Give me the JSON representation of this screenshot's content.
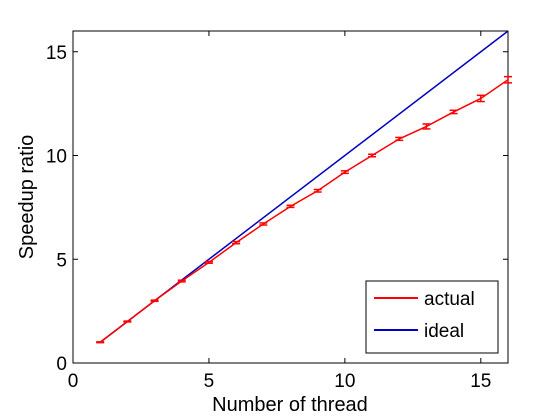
{
  "chart_data": {
    "type": "line",
    "xlabel": "Number of thread",
    "ylabel": "Speedup ratio",
    "xlim": [
      0,
      16
    ],
    "ylim": [
      0,
      16
    ],
    "xticks": [
      0,
      5,
      10,
      15
    ],
    "yticks": [
      0,
      5,
      10,
      15
    ],
    "grid": false,
    "legend_position": "bottom-right",
    "series": [
      {
        "name": "actual",
        "color": "#ff0000",
        "x": [
          1,
          2,
          3,
          4,
          5,
          6,
          7,
          8,
          9,
          10,
          11,
          12,
          13,
          14,
          15,
          16
        ],
        "y": [
          1.0,
          2.0,
          3.0,
          3.95,
          4.85,
          5.8,
          6.7,
          7.55,
          8.3,
          9.2,
          10.0,
          10.8,
          11.4,
          12.1,
          12.75,
          13.65
        ],
        "error": [
          0.02,
          0.02,
          0.03,
          0.04,
          0.04,
          0.05,
          0.05,
          0.05,
          0.06,
          0.06,
          0.06,
          0.07,
          0.12,
          0.08,
          0.15,
          0.15
        ]
      },
      {
        "name": "ideal",
        "color": "#0000c0",
        "x": [
          1,
          16
        ],
        "y": [
          1,
          16
        ]
      }
    ]
  }
}
